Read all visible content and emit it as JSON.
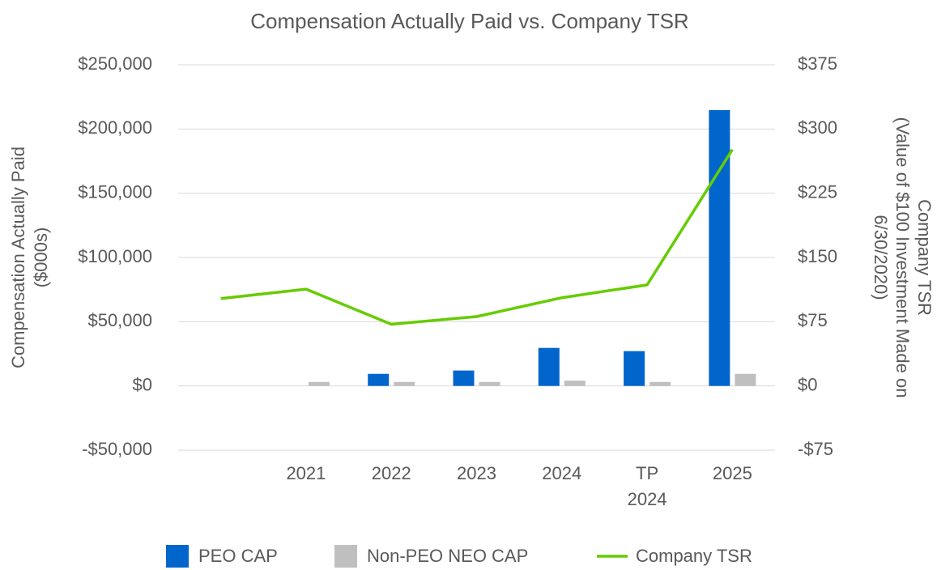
{
  "chart_data": {
    "type": "bar_line",
    "title": "Compensation Actually Paid vs. Company TSR",
    "y_label": [
      "Compensation Actually Paid",
      "($000s)"
    ],
    "y2_label": [
      "Company TSR",
      "(Value of $100 Investment Made on",
      "6/30/2020)"
    ],
    "categories": [
      null,
      "2021",
      "2022",
      "2023",
      "2024",
      "TP\n2024",
      "2025"
    ],
    "series": [
      {
        "name": "PEO CAP",
        "type": "bar",
        "color": "#0066cc",
        "values": [
          null,
          null,
          9400,
          12000,
          29600,
          27100,
          214700
        ]
      },
      {
        "name": "Non-PEO NEO CAP",
        "type": "bar",
        "color": "#bfbfbf",
        "values": [
          null,
          3100,
          3100,
          3100,
          4100,
          3100,
          9400
        ]
      },
      {
        "name": "Company TSR",
        "type": "line",
        "axis": "y2",
        "color": "#66cc00",
        "values": [
          102,
          113,
          72,
          81,
          103,
          118,
          276
        ]
      }
    ],
    "ylim": [
      -50000,
      250000
    ],
    "yticks": [
      {
        "value": -50000,
        "label": "-$50,000"
      },
      {
        "value": 0,
        "label": "$0"
      },
      {
        "value": 50000,
        "label": "$50,000"
      },
      {
        "value": 100000,
        "label": "$100,000"
      },
      {
        "value": 150000,
        "label": "$150,000"
      },
      {
        "value": 200000,
        "label": "$200,000"
      },
      {
        "value": 250000,
        "label": "$250,000"
      }
    ],
    "y2lim": [
      -75,
      375
    ],
    "y2ticks": [
      {
        "value": -75,
        "label": "-$75"
      },
      {
        "value": 0,
        "label": "$0"
      },
      {
        "value": 75,
        "label": "$75"
      },
      {
        "value": 150,
        "label": "$150"
      },
      {
        "value": 225,
        "label": "$225"
      },
      {
        "value": 300,
        "label": "$300"
      },
      {
        "value": 375,
        "label": "$375"
      }
    ],
    "grid": true,
    "legend": "bottom"
  }
}
